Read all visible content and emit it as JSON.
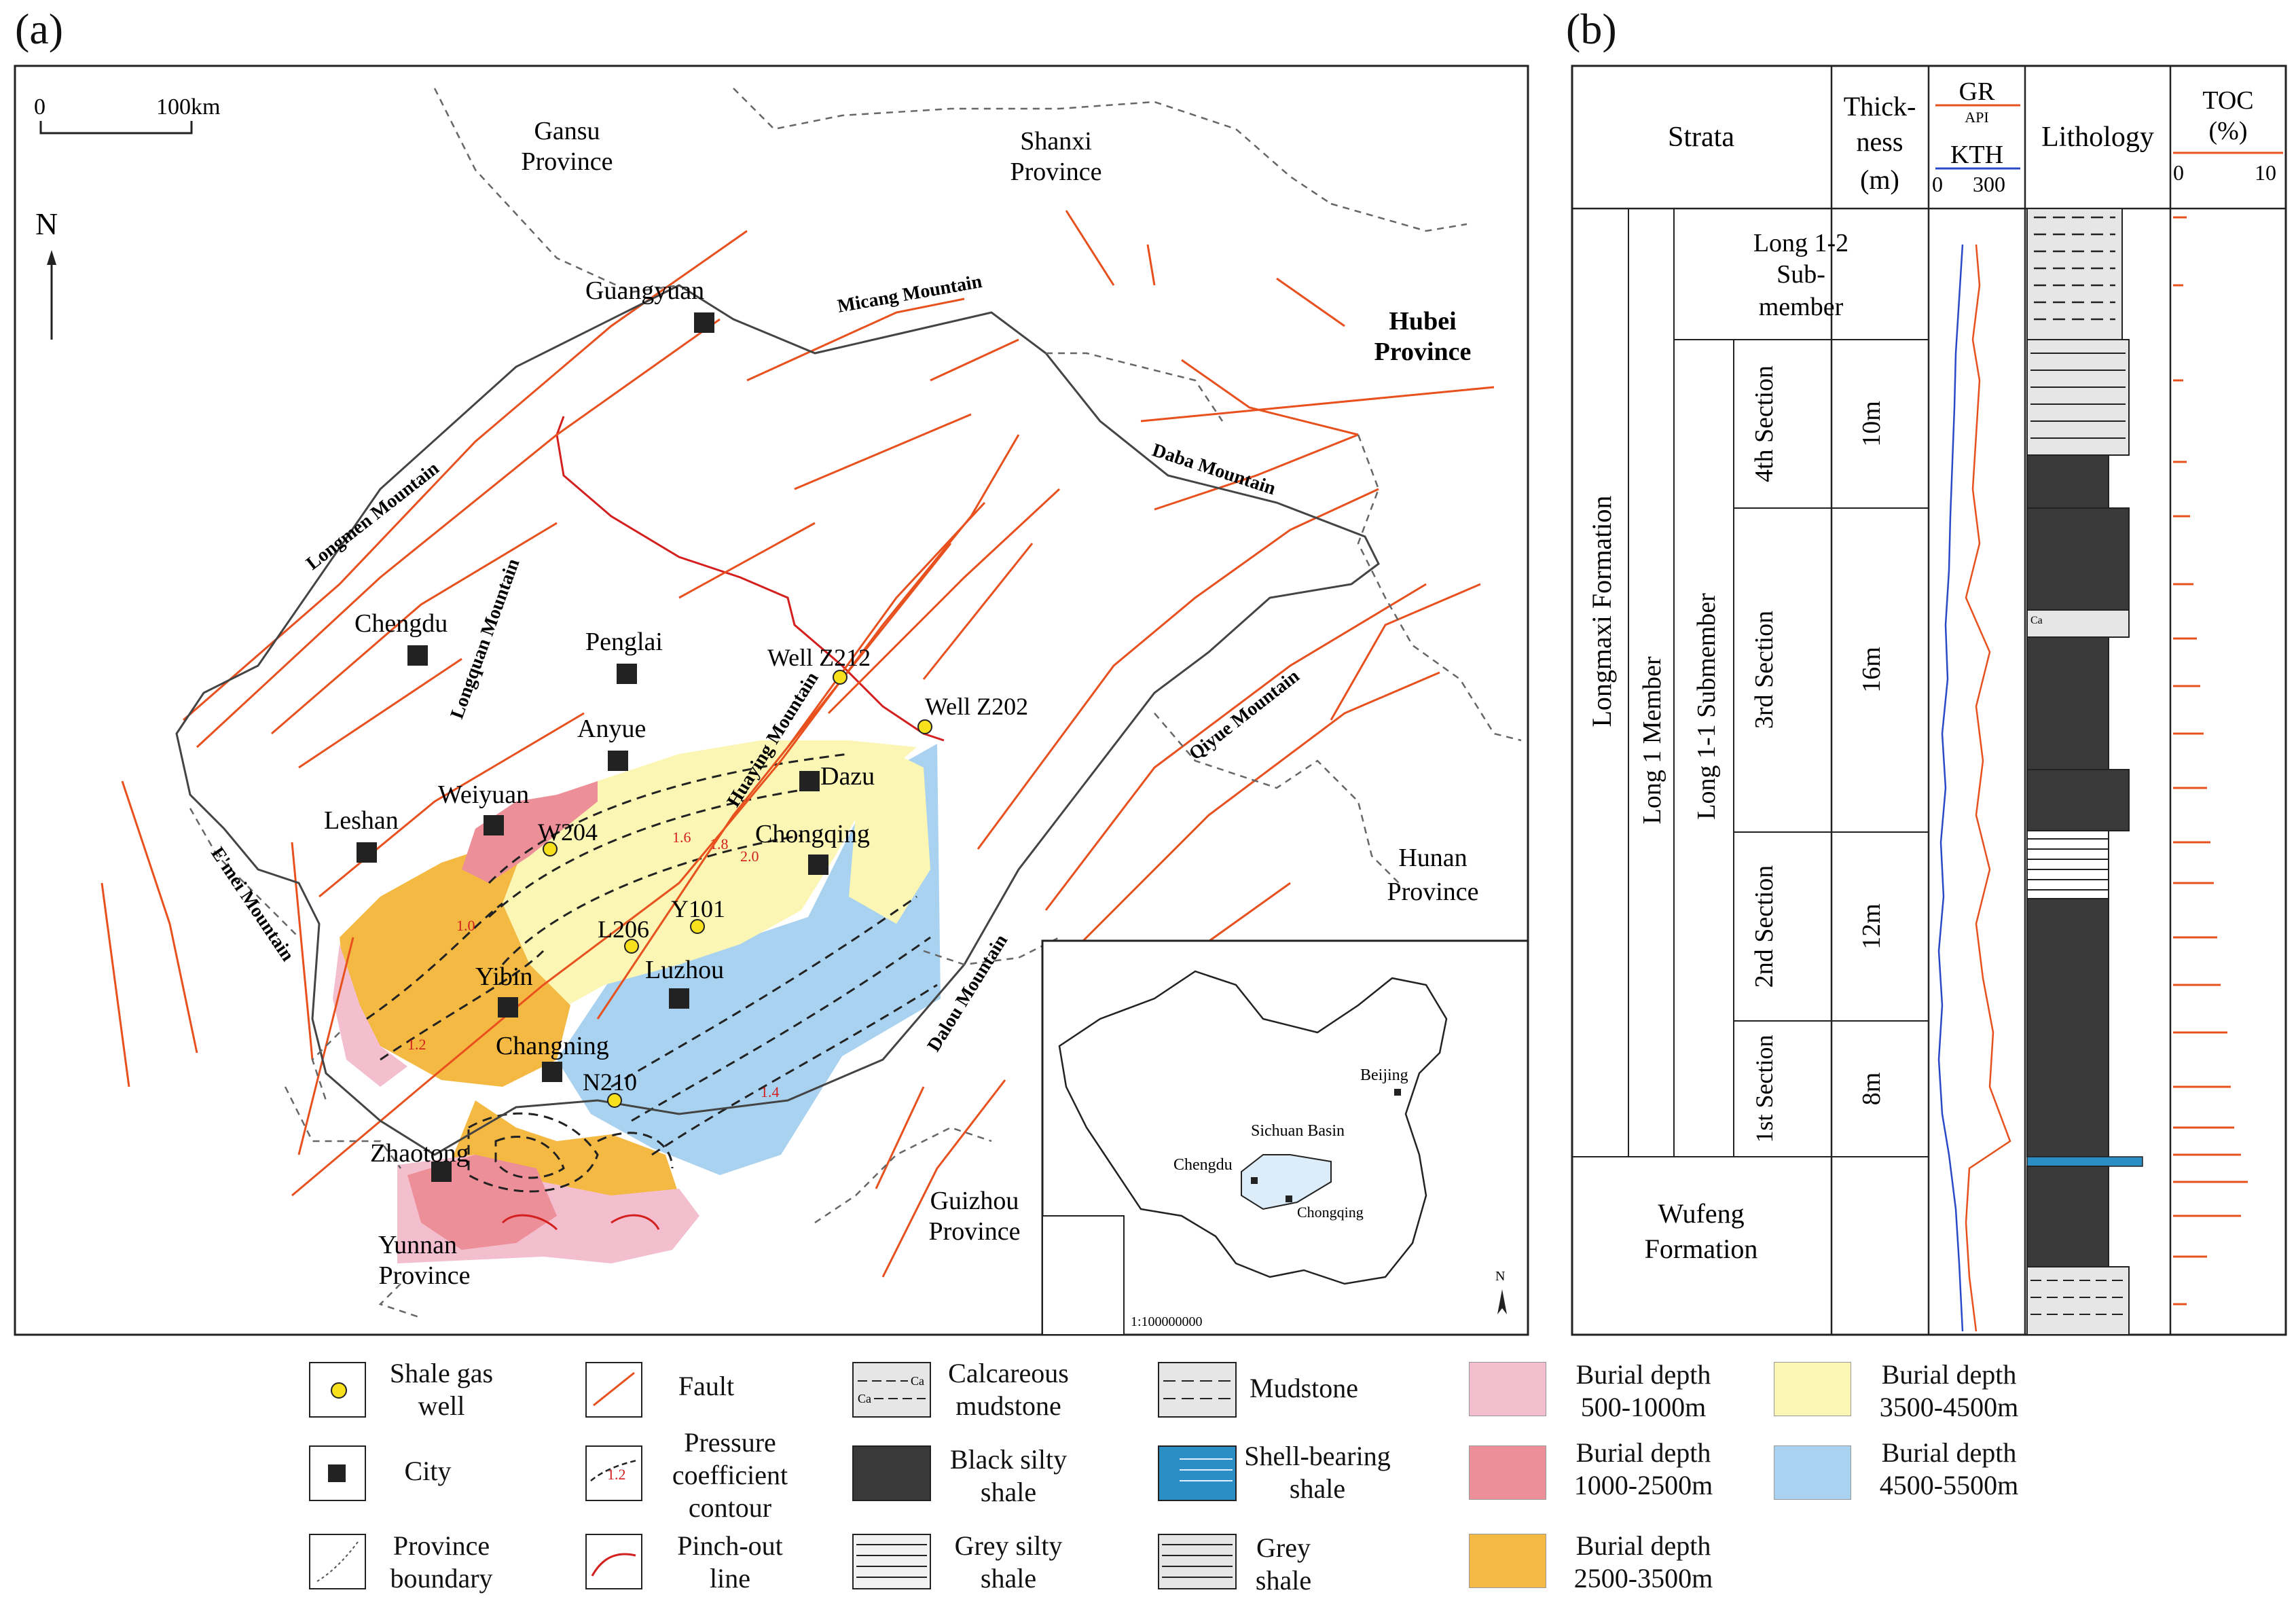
{
  "panels": {
    "a": "(a)",
    "b": "(b)"
  },
  "map": {
    "scale_bar": {
      "start": "0",
      "end": "100km"
    },
    "north": "N",
    "provinces": [
      {
        "id": "gansu",
        "line1": "Gansu",
        "line2": "Province"
      },
      {
        "id": "shanxi",
        "line1": "Shanxi",
        "line2": "Province"
      },
      {
        "id": "hubei",
        "line1": "Hubei",
        "line2": "Province"
      },
      {
        "id": "hunan",
        "line1": "Hunan",
        "line2": "Province"
      },
      {
        "id": "guizhou",
        "line1": "Guizhou",
        "line2": "Province"
      },
      {
        "id": "yunnan",
        "line1": "Yunnan",
        "line2": "Province"
      }
    ],
    "mountains": [
      "Micang Mountain",
      "Longmen Mountain",
      "Longquan Mountain",
      "Daba Mountain",
      "Huaying Mountain",
      "Qiyue Mountain",
      "E'mei Mountain",
      "Dalou Mountain"
    ],
    "cities": [
      "Guangyuan",
      "Chengdu",
      "Penglai",
      "Anyue",
      "Leshan",
      "Weiyuan",
      "Dazu",
      "Chongqing",
      "Luzhou",
      "Yibin",
      "Changning",
      "Zhaotong"
    ],
    "wells": [
      "Well Z212",
      "Well Z202",
      "W204",
      "L206",
      "Y101",
      "N210"
    ],
    "contours": [
      "1.0",
      "1.2",
      "1.4",
      "1.6",
      "1.8",
      "2.0"
    ],
    "inset": {
      "beijing": "Beijing",
      "basin": "Sichuan Basin",
      "chengdu": "Chengdu",
      "chongqing": "Chongqing",
      "scale": "1:100000000",
      "north": "N"
    }
  },
  "column": {
    "headers": {
      "strata": "Strata",
      "thickness": [
        "Thick-",
        "ness",
        "(m)"
      ],
      "gr": "GR",
      "gr_unit": "API",
      "kth": "KTH",
      "log_min": "0",
      "log_max": "300",
      "lithology": "Lithology",
      "toc": [
        "TOC",
        "(%)"
      ],
      "toc_min": "0",
      "toc_max": "10"
    },
    "formation": "Longmaxi    Formation",
    "member": "Long 1  Member",
    "submember": "Long 1-1  Submember",
    "long12": [
      "Long 1-2",
      "Sub-",
      "member"
    ],
    "sections": [
      {
        "name": "4th Section",
        "thickness": "10m"
      },
      {
        "name": "3rd Section",
        "thickness": "16m"
      },
      {
        "name": "2nd Section",
        "thickness": "12m"
      },
      {
        "name": "1st Section",
        "thickness": "8m"
      }
    ],
    "wufeng": [
      "Wufeng",
      "Formation"
    ],
    "ca": "Ca"
  },
  "legend": {
    "shale_gas_well": [
      "Shale gas",
      "well"
    ],
    "city": "City",
    "province_boundary": [
      "Province",
      "boundary"
    ],
    "fault": "Fault",
    "pressure_contour": [
      "Pressure",
      "coefficient",
      "contour"
    ],
    "pinch_out": [
      "Pinch-out",
      "line"
    ],
    "contour_sample": "1.2",
    "calcareous": [
      "Calcareous",
      "mudstone"
    ],
    "black_silty": [
      "Black silty",
      "shale"
    ],
    "grey_silty": [
      "Grey silty",
      "shale"
    ],
    "mudstone": "Mudstone",
    "shell_bearing": [
      "Shell-bearing",
      "shale"
    ],
    "grey_shale": [
      "Grey",
      "shale"
    ],
    "depth_500": [
      "Burial depth",
      "500-1000m"
    ],
    "depth_1000": [
      "Burial depth",
      "1000-2500m"
    ],
    "depth_2500": [
      "Burial depth",
      "2500-3500m"
    ],
    "depth_3500": [
      "Burial depth",
      "3500-4500m"
    ],
    "depth_4500": [
      "Burial depth",
      "4500-5500m"
    ]
  },
  "colors": {
    "fault": "#e8501e",
    "depth_500": "#f3bfcf",
    "depth_1000": "#ec8f98",
    "depth_2500": "#f4b942",
    "depth_3500": "#fbf6b4",
    "depth_4500": "#a9d2f0",
    "black_shale": "#3a3a3a",
    "shell": "#2b8fc6",
    "gr_curve": "#e8501e",
    "kth_curve": "#2a49c9",
    "well": "#f7e11c"
  }
}
